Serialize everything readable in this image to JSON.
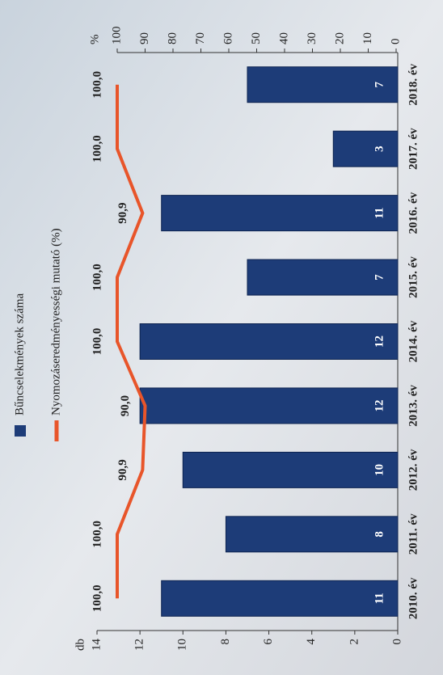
{
  "chart_data": {
    "type": "bar",
    "categories": [
      "2010. év",
      "2011. év",
      "2012. év",
      "2013. év",
      "2014. év",
      "2015. év",
      "2016. év",
      "2017. év",
      "2018. év"
    ],
    "series": [
      {
        "name": "Bűncselekmények száma",
        "type": "bar",
        "color": "#1d3c78",
        "values": [
          11,
          8,
          10,
          12,
          12,
          7,
          11,
          3,
          7
        ]
      },
      {
        "name": "Nyomozáseredményességi mutató (%)",
        "type": "line",
        "axis": "y2",
        "color": "#e8552a",
        "values": [
          100,
          100,
          90.9,
          90,
          100,
          100,
          90.9,
          100,
          100
        ],
        "value_labels": [
          "100,0",
          "100,0",
          "90,9",
          "90,0",
          "100,0",
          "100,0",
          "90,9",
          "100,0",
          "100,0"
        ]
      }
    ],
    "y_label": "db",
    "y2_label": "%",
    "ylim": [
      0,
      14
    ],
    "yticks": [
      0,
      2,
      4,
      6,
      8,
      10,
      12,
      14
    ],
    "y2lim": [
      0,
      100
    ],
    "y2ticks": [
      0,
      10,
      20,
      30,
      40,
      50,
      60,
      70,
      80,
      90,
      100
    ]
  }
}
